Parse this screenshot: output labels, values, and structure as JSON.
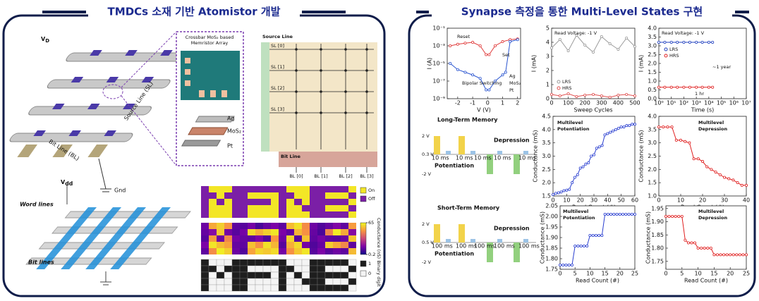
{
  "left_panel": {
    "title": "TMDCs 소재 기반 Atomistor 개발",
    "crossbar_3d": {
      "vd": {
        "main": "V",
        "sub": "D"
      },
      "gnd": "Gnd",
      "bit_line": "Bit Line (BL)",
      "source_line": "Source Line (SL)"
    },
    "inset": {
      "title_lines": [
        "Crossbar MoS₂ based",
        "Memristor Array"
      ],
      "layers": [
        "Ag",
        "MoS₂",
        "Pt"
      ]
    },
    "circuit": {
      "source_line": "Source Line",
      "sl_labels": [
        "SL [0]",
        "SL [1]",
        "SL [2]",
        "SL [3]"
      ],
      "bit_line": "Bit Line",
      "bl_labels": [
        "BL [0]",
        "BL [1]",
        "BL [2]",
        "BL [3]"
      ]
    },
    "array_3d": {
      "vdd": {
        "main": "V",
        "sub": "dd"
      },
      "word_lines": "Word lines",
      "bit_lines": "Bit lines"
    },
    "maps": {
      "binary": [
        [
          1,
          0,
          0,
          0,
          1,
          1,
          1,
          1,
          1,
          1,
          1,
          0,
          0,
          0,
          1,
          1,
          1,
          1,
          1,
          0
        ],
        [
          1,
          1,
          0,
          1,
          1,
          1,
          0,
          0,
          0,
          0,
          1,
          1,
          0,
          0,
          1,
          1,
          0,
          0,
          0,
          1
        ],
        [
          1,
          0,
          1,
          0,
          1,
          1,
          1,
          1,
          1,
          0,
          1,
          0,
          1,
          0,
          1,
          1,
          1,
          1,
          1,
          0
        ],
        [
          1,
          0,
          0,
          0,
          1,
          1,
          0,
          0,
          0,
          0,
          1,
          0,
          0,
          1,
          1,
          1,
          0,
          0,
          0,
          1
        ],
        [
          1,
          0,
          0,
          0,
          1,
          1,
          0,
          0,
          0,
          0,
          1,
          0,
          0,
          0,
          1,
          1,
          1,
          1,
          1,
          0
        ]
      ],
      "conductance": [
        [
          14,
          52,
          58,
          49,
          12,
          11,
          15,
          9,
          13,
          16,
          12,
          55,
          61,
          47,
          14,
          10,
          13,
          17,
          12,
          50
        ],
        [
          13,
          18,
          57,
          15,
          11,
          15,
          60,
          53,
          58,
          62,
          16,
          12,
          54,
          48,
          13,
          9,
          45,
          63,
          52,
          18
        ],
        [
          11,
          50,
          14,
          46,
          15,
          13,
          12,
          16,
          10,
          49,
          14,
          59,
          11,
          56,
          12,
          15,
          12,
          11,
          14,
          57
        ],
        [
          16,
          62,
          55,
          51,
          13,
          12,
          56,
          48,
          61,
          54,
          11,
          53,
          60,
          15,
          10,
          13,
          58,
          52,
          46,
          12
        ],
        [
          12,
          47,
          63,
          58,
          14,
          10,
          51,
          59,
          57,
          60,
          15,
          48,
          57,
          62,
          11,
          16,
          11,
          14,
          12,
          55
        ]
      ],
      "top_colors": [
        "#f3e626",
        "#7b1fa6"
      ],
      "on_off_legend": [
        "On",
        "Off"
      ],
      "conductance_label": "Conductance (nS)",
      "conductance_ticks": [
        65,
        0.2
      ],
      "bottom_colors": [
        "#f4f4f4",
        "#1e1e1e"
      ],
      "binary_label": "Binary digit",
      "binary_ticks": [
        1,
        0
      ]
    }
  },
  "right_panel": {
    "title": "Synapse 측정을 통한 Multi-Level States 구현",
    "plots": [
      {
        "xlabel": "V (V)",
        "ylabel": "I (A)",
        "xlim": [
          -2.7,
          2.2
        ],
        "xticks": [
          -2,
          -1,
          0,
          1,
          2
        ],
        "ylog": true,
        "ylim": [
          1e-09,
          0.1
        ],
        "yticks": [
          {
            "value": 1e-09,
            "label": "10⁻⁹"
          },
          {
            "value": 1e-07,
            "label": "10⁻⁷"
          },
          {
            "value": 1e-05,
            "label": "10⁻⁵"
          },
          {
            "value": 0.001,
            "label": "10⁻³"
          },
          {
            "value": 0.1,
            "label": "10⁻¹"
          }
        ],
        "series": [
          {
            "color": "#e03a3a",
            "x": [
              -2.5,
              -2,
              -1.5,
              -1,
              -0.5,
              -0.1,
              0.1,
              0.5,
              1,
              1.5,
              2
            ],
            "y": [
              0.001,
              0.0015,
              0.002,
              0.0025,
              0.001,
              0.0001,
              0.0001,
              0.001,
              0.003,
              0.005,
              0.006
            ]
          },
          {
            "color": "#2a55d0",
            "x": [
              -2.5,
              -2,
              -1.5,
              -1,
              -0.5,
              -0.1,
              0.1,
              0.5,
              1,
              1.2,
              1.5,
              2
            ],
            "y": [
              1e-05,
              2e-06,
              1e-06,
              5e-07,
              2e-07,
              1e-08,
              1e-08,
              1e-07,
              5e-07,
              1e-06,
              0.003,
              0.005
            ]
          }
        ],
        "annotations": [
          "Reset",
          "Set",
          "Bipolar Switching",
          "Ag",
          "MoS₂",
          "Pt"
        ]
      },
      {
        "xlabel": "Sweep Cycles",
        "ylabel": "I (mA)",
        "xlim": [
          0,
          500
        ],
        "xticks": [
          0,
          100,
          200,
          300,
          400,
          500
        ],
        "ylim": [
          0,
          5
        ],
        "yticks": [
          0,
          1,
          2,
          3,
          4,
          5
        ],
        "series": [
          {
            "name": "LRS",
            "color": "#9a9a9a",
            "x": [
              0,
              50,
              100,
              150,
              200,
              250,
              300,
              350,
              400,
              450,
              500
            ],
            "y": [
              3.6,
              4.2,
              3.4,
              4.5,
              3.8,
              3.3,
              4.4,
              3.9,
              3.5,
              4.3,
              3.7
            ]
          },
          {
            "name": "HRS",
            "color": "#e05050",
            "x": [
              0,
              50,
              100,
              150,
              200,
              250,
              300,
              350,
              400,
              450,
              500
            ],
            "y": [
              0.3,
              0.2,
              0.35,
              0.15,
              0.25,
              0.3,
              0.2,
              0.1,
              0.25,
              0.3,
              0.2
            ]
          }
        ],
        "annotations": [
          "Read Voltage: -1 V"
        ]
      },
      {
        "xlabel": "Time (s)",
        "ylabel": "I (mA)",
        "xlog": true,
        "xlim": [
          1,
          10000000
        ],
        "xticks": [
          {
            "value": 1,
            "label": "10⁰"
          },
          {
            "value": 10,
            "label": "10¹"
          },
          {
            "value": 100,
            "label": "10²"
          },
          {
            "value": 1000,
            "label": "10³"
          },
          {
            "value": 10000,
            "label": "10⁴"
          },
          {
            "value": 100000,
            "label": "10⁵"
          },
          {
            "value": 1000000,
            "label": "10⁶"
          },
          {
            "value": 10000000,
            "label": "10⁷"
          }
        ],
        "ylim": [
          0,
          4
        ],
        "yticks": [
          {
            "value": 0,
            "label": "0.0"
          },
          0.5,
          {
            "value": 1,
            "label": "1.0"
          },
          1.5,
          {
            "value": 2,
            "label": "2.0"
          },
          2.5,
          {
            "value": 3,
            "label": "3.0"
          },
          3.5,
          {
            "value": 4,
            "label": "4.0"
          }
        ],
        "series": [
          {
            "name": "LRS",
            "color": "#1f3fbf",
            "x": [
              1,
              3,
              10,
              30,
              100,
              300,
              1000,
              3000,
              10000,
              20000
            ],
            "y": [
              3.2,
              3.2,
              3.2,
              3.2,
              3.2,
              3.2,
              3.2,
              3.2,
              3.2,
              3.2
            ]
          },
          {
            "name": "HRS",
            "color": "#e02020",
            "x": [
              1,
              3,
              10,
              30,
              100,
              300,
              1000,
              3000,
              10000,
              20000
            ],
            "y": [
              0.65,
              0.65,
              0.65,
              0.65,
              0.65,
              0.65,
              0.65,
              0.65,
              0.65,
              0.65
            ]
          }
        ],
        "annotations": [
          "Read Voltage: -1 V",
          "~1 year",
          "1 hr"
        ]
      },
      {
        "xlabel": "Read Count (#)",
        "ylabel": "Conductance (mS)",
        "xlim": [
          0,
          60
        ],
        "xticks": [
          0,
          10,
          20,
          30,
          40,
          50,
          60
        ],
        "ylim": [
          1.5,
          4.5
        ],
        "yticks": [
          1.5,
          {
            "value": 2,
            "label": "2.0"
          },
          2.5,
          {
            "value": 3,
            "label": "3.0"
          },
          3.5,
          {
            "value": 4,
            "label": "4.0"
          },
          4.5
        ],
        "series": [
          {
            "color": "#2a3fd0",
            "x": [
              0,
              2,
              4,
              6,
              8,
              10,
              12,
              14,
              16,
              18,
              20,
              22,
              24,
              26,
              28,
              30,
              32,
              34,
              36,
              38,
              40,
              42,
              44,
              46,
              48,
              50,
              52,
              54,
              56,
              58,
              60
            ],
            "y": [
              1.55,
              1.6,
              1.62,
              1.65,
              1.7,
              1.72,
              1.75,
              2.0,
              2.2,
              2.3,
              2.55,
              2.6,
              2.7,
              2.75,
              3.0,
              3.05,
              3.3,
              3.35,
              3.4,
              3.8,
              3.85,
              3.9,
              3.95,
              4.0,
              4.05,
              4.1,
              4.1,
              4.15,
              4.15,
              4.2,
              4.2
            ]
          }
        ],
        "annotations": [
          "Multilevel",
          "Potentiation"
        ]
      },
      {
        "xlabel": "Read Count (#)",
        "ylabel": "Conductance (mS)",
        "xlim": [
          0,
          40
        ],
        "xticks": [
          0,
          10,
          20,
          30,
          40
        ],
        "ylim": [
          1,
          4
        ],
        "yticks": [
          {
            "value": 1,
            "label": "1.0"
          },
          1.5,
          {
            "value": 2,
            "label": "2.0"
          },
          2.5,
          {
            "value": 3,
            "label": "3.0"
          },
          3.5,
          {
            "value": 4,
            "label": "4.0"
          }
        ],
        "series": [
          {
            "color": "#e02020",
            "x": [
              0,
              2,
              4,
              6,
              8,
              10,
              12,
              14,
              16,
              18,
              20,
              22,
              24,
              26,
              28,
              30,
              32,
              34,
              36,
              38,
              40
            ],
            "y": [
              3.6,
              3.6,
              3.6,
              3.6,
              3.1,
              3.1,
              3.05,
              3.0,
              2.4,
              2.4,
              2.3,
              2.1,
              2.0,
              1.9,
              1.8,
              1.7,
              1.65,
              1.6,
              1.5,
              1.4,
              1.4
            ]
          }
        ],
        "annotations": [
          "Multilevel",
          "Depression"
        ]
      },
      {
        "xlabel": "Read Count (#)",
        "ylabel": "Conductance (mS)",
        "xlim": [
          0,
          25
        ],
        "xticks": [
          0,
          5,
          10,
          15,
          20,
          25
        ],
        "ylim": [
          1.75,
          2.05
        ],
        "yticks": [
          1.75,
          {
            "value": 1.8,
            "label": "1.80"
          },
          1.85,
          {
            "value": 1.9,
            "label": "1.90"
          },
          1.95,
          {
            "value": 2,
            "label": "2.00"
          },
          2.05
        ],
        "series": [
          {
            "color": "#2a3fd0",
            "x": [
              0,
              1,
              2,
              3,
              4,
              5,
              6,
              7,
              8,
              9,
              10,
              11,
              12,
              13,
              14,
              15,
              16,
              17,
              18,
              19,
              20,
              21,
              22,
              23,
              24,
              25
            ],
            "y": [
              1.77,
              1.77,
              1.77,
              1.77,
              1.77,
              1.86,
              1.86,
              1.86,
              1.86,
              1.86,
              1.91,
              1.91,
              1.91,
              1.91,
              1.91,
              2.01,
              2.01,
              2.01,
              2.01,
              2.01,
              2.01,
              2.01,
              2.01,
              2.01,
              2.01,
              2.01
            ]
          }
        ],
        "annotations": [
          "Multilevel",
          "Potentiation"
        ]
      },
      {
        "xlabel": "Read Count (#)",
        "ylabel": "Conductance (mS)",
        "xlim": [
          0,
          25
        ],
        "xticks": [
          0,
          5,
          10,
          15,
          20,
          25
        ],
        "ylim": [
          1.72,
          1.96
        ],
        "yticks": [
          1.75,
          {
            "value": 1.8,
            "label": "1.80"
          },
          1.85,
          {
            "value": 1.9,
            "label": "1.90"
          },
          1.95
        ],
        "series": [
          {
            "color": "#e02020",
            "x": [
              0,
              1,
              2,
              3,
              4,
              5,
              6,
              7,
              8,
              9,
              10,
              11,
              12,
              13,
              14,
              15,
              16,
              17,
              18,
              19,
              20,
              21,
              22,
              23,
              24,
              25
            ],
            "y": [
              1.92,
              1.92,
              1.92,
              1.92,
              1.92,
              1.92,
              1.83,
              1.82,
              1.82,
              1.82,
              1.8,
              1.8,
              1.8,
              1.8,
              1.8,
              1.775,
              1.775,
              1.775,
              1.775,
              1.775,
              1.775,
              1.775,
              1.775,
              1.775,
              1.775,
              1.775
            ]
          }
        ],
        "annotations": [
          "Multilevel",
          "Depression"
        ]
      }
    ],
    "pulse_diagrams": [
      {
        "title": "Long-Term Memory",
        "depression": "Depression",
        "potentiation": "Potentiation",
        "levels": [
          "2 V",
          "0.3 V",
          "-2 V"
        ],
        "widths": [
          "10 ms",
          "10 ms",
          "10 ms",
          "10 ms",
          "10 ms"
        ]
      },
      {
        "title": "Short-Term Memory",
        "depression": "Depression",
        "potentiation": "Potentiation",
        "levels": [
          "2 V",
          "0.5 V",
          "-2 V"
        ],
        "widths": [
          "100 ms",
          "100 ms",
          "100 ms",
          "100 ms",
          "100 ms"
        ]
      }
    ]
  }
}
